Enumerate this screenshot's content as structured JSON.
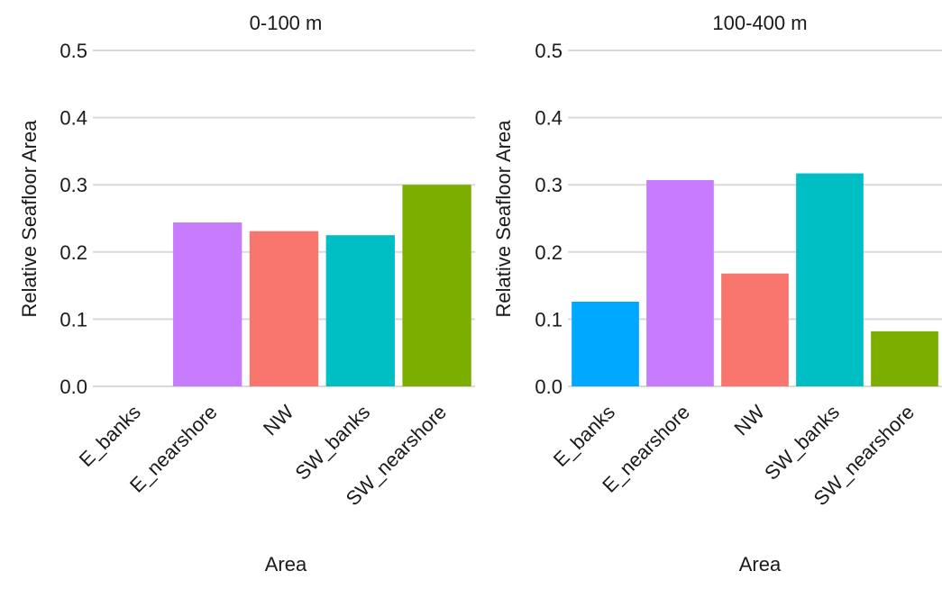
{
  "chart_data": [
    {
      "type": "bar",
      "title": "0-100 m",
      "xlabel": "Area",
      "ylabel": "Relative Seafloor Area",
      "ylim": [
        0,
        0.5
      ],
      "yticks": [
        "0.0",
        "0.1",
        "0.2",
        "0.3",
        "0.4",
        "0.5"
      ],
      "grid": true,
      "categories": [
        "E_banks",
        "E_nearshore",
        "NW",
        "SW_banks",
        "SW_nearshore"
      ],
      "values": [
        0,
        0.244,
        0.231,
        0.225,
        0.3
      ],
      "colors": [
        "#00A9FF",
        "#C77CFF",
        "#F8766D",
        "#00BFC4",
        "#7CAE00"
      ]
    },
    {
      "type": "bar",
      "title": "100-400 m",
      "xlabel": "Area",
      "ylabel": "Relative Seafloor Area",
      "ylim": [
        0,
        0.5
      ],
      "yticks": [
        "0.0",
        "0.1",
        "0.2",
        "0.3",
        "0.4",
        "0.5"
      ],
      "grid": true,
      "categories": [
        "E_banks",
        "E_nearshore",
        "NW",
        "SW_banks",
        "SW_nearshore"
      ],
      "values": [
        0.126,
        0.307,
        0.168,
        0.317,
        0.082
      ],
      "colors": [
        "#00A9FF",
        "#C77CFF",
        "#F8766D",
        "#00BFC4",
        "#7CAE00"
      ]
    }
  ]
}
